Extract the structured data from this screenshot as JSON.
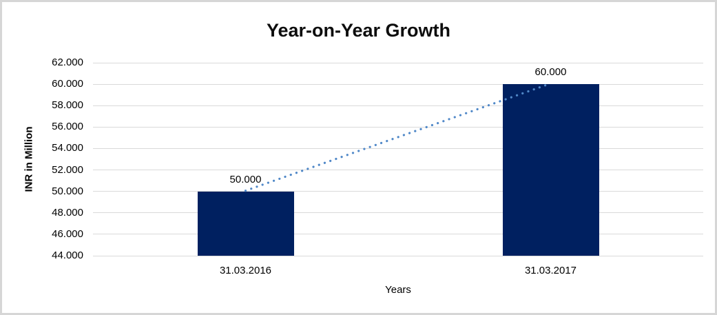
{
  "chart_data": {
    "type": "bar",
    "title": "Year-on-Year Growth",
    "xlabel": "Years",
    "ylabel": "INR in Million",
    "categories": [
      "31.03.2016",
      "31.03.2017"
    ],
    "values": [
      50000,
      60000
    ],
    "bar_labels": [
      "50.000",
      "60.000"
    ],
    "ylim": [
      44000,
      62000
    ],
    "ytick_step": 2000,
    "ytick_labels": [
      "44.000",
      "46.000",
      "48.000",
      "50.000",
      "52.000",
      "54.000",
      "56.000",
      "58.000",
      "60.000",
      "62.000"
    ],
    "grid": true,
    "legend": "none",
    "trendline": {
      "type": "linear",
      "style": "dotted"
    },
    "colors": {
      "bar": "#002060",
      "trendline": "#5088C8",
      "gridline": "#d9d9d9",
      "text": "#000000",
      "border": "#d6d6d6"
    }
  }
}
